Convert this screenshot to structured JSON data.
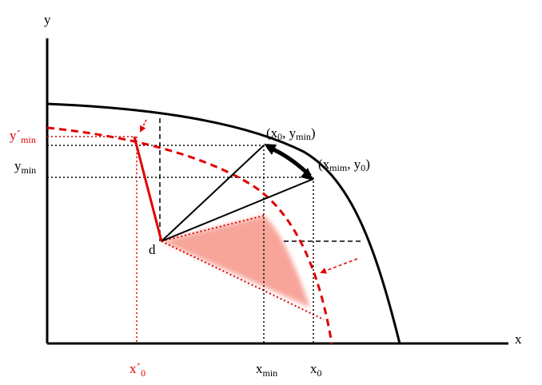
{
  "axes": {
    "x_label": "x",
    "y_label": "y"
  },
  "labels": {
    "y_min": {
      "main": "y",
      "sub": "min"
    },
    "y_prime_min": {
      "main": "y´",
      "sub": "min"
    },
    "point_d": "d",
    "x_prime_0": {
      "main": "x´",
      "sub": "0"
    },
    "x_min": {
      "main": "x",
      "sub": "min"
    },
    "x_0": {
      "main": "x",
      "sub": "0"
    },
    "point_x0_ymin": {
      "open": "(x",
      "sub1": "0",
      "mid": ", y",
      "sub2": "min",
      "close": ")"
    },
    "point_xmim_y0": {
      "open": "(x",
      "sub1": "mim",
      "mid": ", y",
      "sub2": "0",
      "close": ")"
    }
  },
  "colors": {
    "axis": "#000000",
    "frontier": "#000000",
    "shifted_frontier": "#e00000",
    "shaded_region": "#f7a094"
  }
}
